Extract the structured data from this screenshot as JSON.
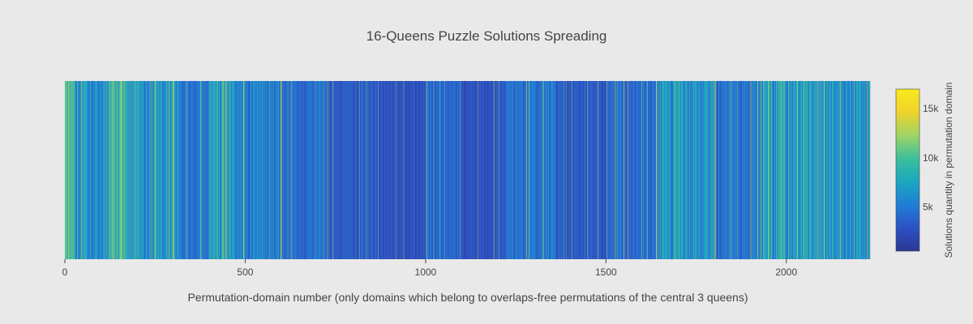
{
  "chart_data": {
    "type": "heatmap",
    "title": "16-Queens Puzzle Solutions Spreading",
    "xlabel": "Permutation-domain number (only domains which belong to overlaps-free permutations of the central 3 queens)",
    "colorbar_label": "Solutions quantity in permutation domain",
    "xlim": [
      0,
      2232
    ],
    "x_ticks": [
      0,
      500,
      1000,
      1500,
      2000
    ],
    "x_tick_labels": [
      "0",
      "500",
      "1000",
      "1500",
      "2000"
    ],
    "colorbar_range": [
      500,
      17000
    ],
    "colorbar_ticks": [
      5000,
      10000,
      15000
    ],
    "colorbar_tick_labels": [
      "5k",
      "10k",
      "15k"
    ],
    "colorscale": [
      "#2a3794",
      "#2c52c6",
      "#1f7ed5",
      "#1aa8c0",
      "#3cbf9a",
      "#9ed465",
      "#f0d22a",
      "#f8ea1f"
    ],
    "domain_count": 2232,
    "segments": [
      {
        "x0": 0,
        "x1": 30,
        "value": 8500
      },
      {
        "x0": 30,
        "x1": 120,
        "value": 5800
      },
      {
        "x0": 120,
        "x1": 200,
        "value": 8200
      },
      {
        "x0": 200,
        "x1": 320,
        "value": 6200
      },
      {
        "x0": 320,
        "x1": 400,
        "value": 4800
      },
      {
        "x0": 400,
        "x1": 470,
        "value": 7400
      },
      {
        "x0": 470,
        "x1": 600,
        "value": 5300
      },
      {
        "x0": 600,
        "x1": 730,
        "value": 4200
      },
      {
        "x0": 730,
        "x1": 870,
        "value": 3200
      },
      {
        "x0": 870,
        "x1": 1000,
        "value": 2600
      },
      {
        "x0": 1000,
        "x1": 1100,
        "value": 3700
      },
      {
        "x0": 1100,
        "x1": 1220,
        "value": 2600
      },
      {
        "x0": 1220,
        "x1": 1360,
        "value": 4300
      },
      {
        "x0": 1360,
        "x1": 1500,
        "value": 3100
      },
      {
        "x0": 1500,
        "x1": 1640,
        "value": 4000
      },
      {
        "x0": 1640,
        "x1": 1800,
        "value": 6500
      },
      {
        "x0": 1800,
        "x1": 1930,
        "value": 4700
      },
      {
        "x0": 1930,
        "x1": 2100,
        "value": 6800
      },
      {
        "x0": 2100,
        "x1": 2232,
        "value": 6200
      }
    ],
    "peaks": [
      3,
      10,
      45,
      130,
      135,
      155,
      250,
      300,
      302,
      440,
      445,
      598,
      600,
      728,
      1280,
      1525,
      1550,
      1560,
      1640,
      1800,
      1803,
      1930,
      1950,
      2030,
      2105,
      2150,
      2223
    ]
  }
}
